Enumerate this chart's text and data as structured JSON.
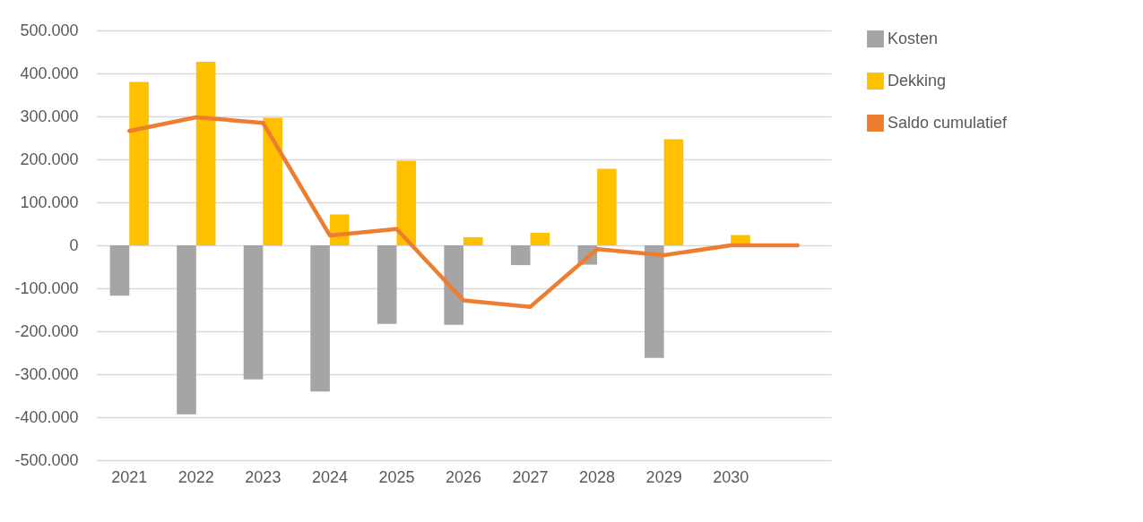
{
  "chart_data": {
    "type": "bar",
    "categories": [
      "2021",
      "2022",
      "2023",
      "2024",
      "2025",
      "2026",
      "2027",
      "2028",
      "2029",
      "2030",
      null
    ],
    "series": [
      {
        "name": "Kosten",
        "color": "#a5a5a5",
        "values": [
          -117000,
          -393000,
          -312000,
          -340000,
          -183000,
          -185000,
          -46000,
          -45000,
          -262000,
          0,
          null
        ]
      },
      {
        "name": "Dekking",
        "color": "#ffc000",
        "values": [
          380000,
          427000,
          297000,
          72000,
          197000,
          19000,
          29000,
          178000,
          247000,
          24000,
          null
        ]
      },
      {
        "name": "Saldo cumulatief",
        "type": "line",
        "color": "#ed7d31",
        "values": [
          266000,
          298000,
          285000,
          23000,
          38000,
          -128000,
          -143000,
          -9000,
          -23000,
          0,
          0
        ]
      }
    ],
    "ylim": [
      -500000,
      500000
    ],
    "yticks": [
      {
        "value": -500000,
        "label": "-500.000"
      },
      {
        "value": -400000,
        "label": "-400.000"
      },
      {
        "value": -300000,
        "label": "-300.000"
      },
      {
        "value": -200000,
        "label": "-200.000"
      },
      {
        "value": -100000,
        "label": "-100.000"
      },
      {
        "value": 0,
        "label": "0"
      },
      {
        "value": 100000,
        "label": "100.000"
      },
      {
        "value": 200000,
        "label": "200.000"
      },
      {
        "value": 300000,
        "label": "300.000"
      },
      {
        "value": 400000,
        "label": "400.000"
      },
      {
        "value": 500000,
        "label": "500.000"
      }
    ],
    "grid": "y",
    "legend": "right",
    "marker": "none",
    "line_style": "solid"
  }
}
